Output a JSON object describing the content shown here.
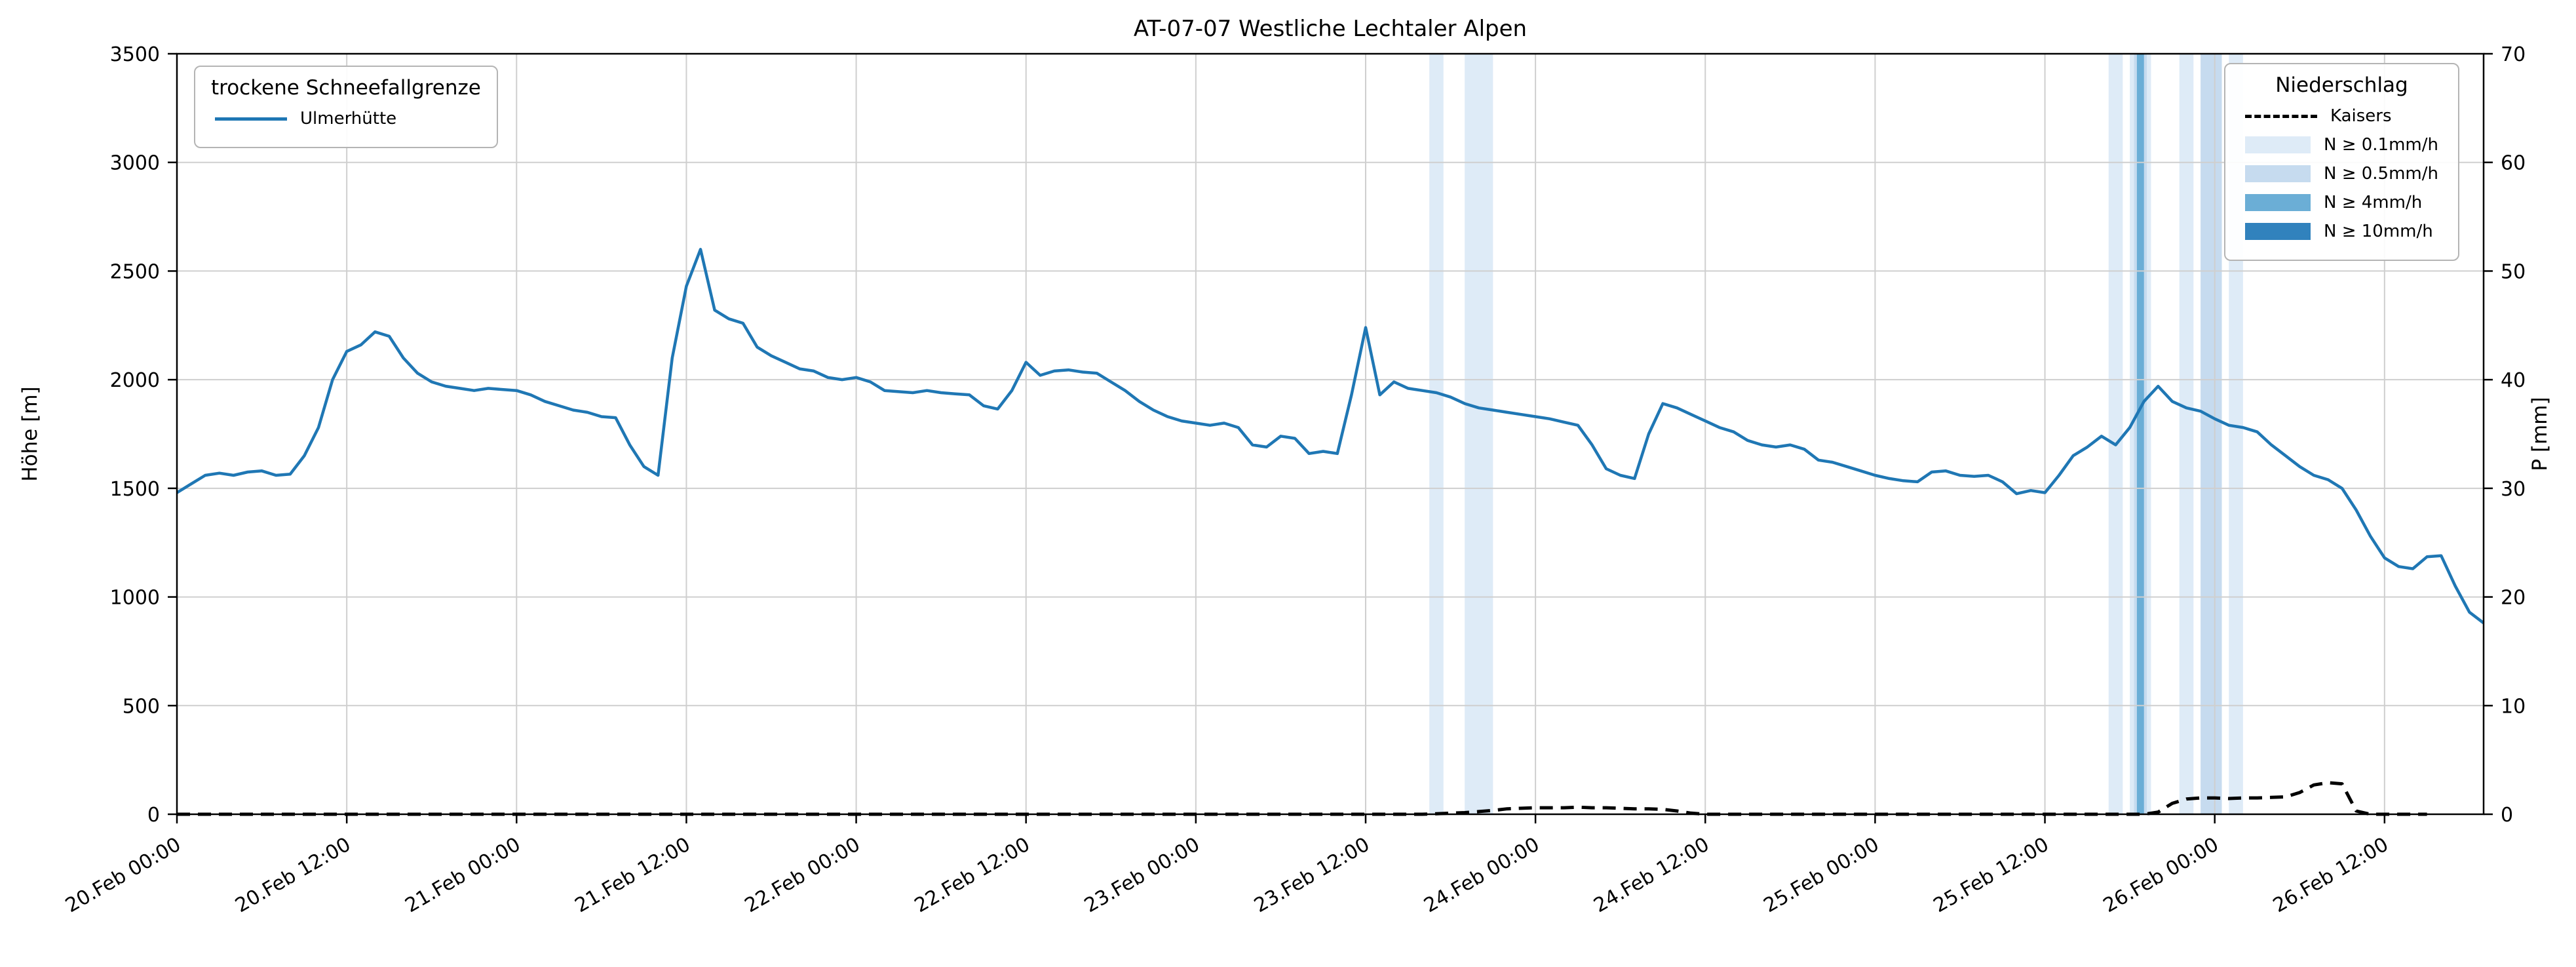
{
  "figure": {
    "title": "AT-07-07 Westliche Lechtaler Alpen",
    "legend_snowline": {
      "title": "trockene Schneefallgrenze",
      "item_label": "Ulmerhütte"
    },
    "legend_precip": {
      "title": "Niederschlag",
      "kaisers_label": "Kaisers",
      "band_labels": [
        "N ≥ 0.1mm/h",
        "N ≥ 0.5mm/h",
        "N ≥ 4mm/h",
        "N ≥ 10mm/h"
      ]
    }
  },
  "chart_data": {
    "type": "line",
    "title": "AT-07-07 Westliche Lechtaler Alpen",
    "x_unit": "hours since 20.Feb 00:00",
    "x_range": [
      0,
      163
    ],
    "x_ticks": [
      {
        "h": 0,
        "label": "20.Feb 00:00"
      },
      {
        "h": 12,
        "label": "20.Feb 12:00"
      },
      {
        "h": 24,
        "label": "21.Feb 00:00"
      },
      {
        "h": 36,
        "label": "21.Feb 12:00"
      },
      {
        "h": 48,
        "label": "22.Feb 00:00"
      },
      {
        "h": 60,
        "label": "22.Feb 12:00"
      },
      {
        "h": 72,
        "label": "23.Feb 00:00"
      },
      {
        "h": 84,
        "label": "23.Feb 12:00"
      },
      {
        "h": 96,
        "label": "24.Feb 00:00"
      },
      {
        "h": 108,
        "label": "24.Feb 12:00"
      },
      {
        "h": 120,
        "label": "25.Feb 00:00"
      },
      {
        "h": 132,
        "label": "25.Feb 12:00"
      },
      {
        "h": 144,
        "label": "26.Feb 00:00"
      },
      {
        "h": 156,
        "label": "26.Feb 12:00"
      }
    ],
    "y_left": {
      "label": "Höhe [m]",
      "range": [
        0,
        3500
      ],
      "ticks": [
        0,
        500,
        1000,
        1500,
        2000,
        2500,
        3000,
        3500
      ]
    },
    "y_right": {
      "label": "P [mm]",
      "range": [
        0,
        70
      ],
      "ticks": [
        0,
        10,
        20,
        30,
        40,
        50,
        60,
        70
      ]
    },
    "grid": true,
    "series": [
      {
        "name": "Ulmerhütte",
        "axis": "left",
        "color": "#1f77b4",
        "style": "solid",
        "width": 4.5,
        "x_start": 0,
        "x_step": 1,
        "values": [
          1480,
          1520,
          1560,
          1570,
          1560,
          1575,
          1580,
          1560,
          1565,
          1650,
          1780,
          2000,
          2130,
          2160,
          2220,
          2200,
          2100,
          2030,
          1990,
          1970,
          1960,
          1950,
          1960,
          1955,
          1950,
          1930,
          1900,
          1880,
          1860,
          1850,
          1830,
          1825,
          1700,
          1600,
          1560,
          2100,
          2430,
          2600,
          2320,
          2280,
          2260,
          2150,
          2110,
          2080,
          2050,
          2040,
          2010,
          2000,
          2010,
          1990,
          1950,
          1945,
          1940,
          1950,
          1940,
          1935,
          1930,
          1880,
          1865,
          1950,
          2080,
          2020,
          2040,
          2045,
          2035,
          2030,
          1990,
          1950,
          1900,
          1860,
          1830,
          1810,
          1800,
          1790,
          1800,
          1780,
          1700,
          1690,
          1740,
          1730,
          1660,
          1670,
          1660,
          1930,
          2240,
          1930,
          1990,
          1960,
          1950,
          1940,
          1920,
          1890,
          1870,
          1860,
          1850,
          1840,
          1830,
          1820,
          1805,
          1790,
          1700,
          1590,
          1560,
          1545,
          1750,
          1890,
          1870,
          1840,
          1810,
          1780,
          1760,
          1720,
          1700,
          1690,
          1700,
          1680,
          1630,
          1620,
          1600,
          1580,
          1560,
          1545,
          1535,
          1530,
          1575,
          1580,
          1560,
          1555,
          1560,
          1530,
          1475,
          1490,
          1480,
          1560,
          1650,
          1690,
          1740,
          1700,
          1780,
          1900,
          1970,
          1900,
          1870,
          1855,
          1820,
          1790,
          1780,
          1760,
          1700,
          1650,
          1600,
          1560,
          1540,
          1500,
          1400,
          1280,
          1180,
          1140,
          1130,
          1185,
          1190,
          1050,
          930,
          880
        ]
      },
      {
        "name": "Kaisers",
        "axis": "right",
        "color": "#000000",
        "style": "dashed",
        "width": 5,
        "x_start": 0,
        "x_step": 1,
        "values": [
          0,
          0,
          0,
          0,
          0,
          0,
          0,
          0,
          0,
          0,
          0,
          0,
          0,
          0,
          0,
          0,
          0,
          0,
          0,
          0,
          0,
          0,
          0,
          0,
          0,
          0,
          0,
          0,
          0,
          0,
          0,
          0,
          0,
          0,
          0,
          0,
          0,
          0,
          0,
          0,
          0,
          0,
          0,
          0,
          0,
          0,
          0,
          0,
          0,
          0,
          0,
          0,
          0,
          0,
          0,
          0,
          0,
          0,
          0,
          0,
          0,
          0,
          0,
          0,
          0,
          0,
          0,
          0,
          0,
          0,
          0,
          0,
          0,
          0,
          0,
          0,
          0,
          0,
          0,
          0,
          0,
          0,
          0,
          0,
          0,
          0,
          0,
          0,
          0,
          0.05,
          0.1,
          0.15,
          0.25,
          0.35,
          0.5,
          0.55,
          0.6,
          0.6,
          0.6,
          0.65,
          0.6,
          0.6,
          0.55,
          0.5,
          0.5,
          0.45,
          0.3,
          0.1,
          0,
          0,
          0,
          0,
          0,
          0,
          0,
          0,
          0,
          0,
          0,
          0,
          0,
          0,
          0,
          0,
          0,
          0,
          0,
          0,
          0,
          0,
          0,
          0,
          0,
          0,
          0,
          0,
          0,
          0,
          0,
          0,
          0.2,
          1.0,
          1.4,
          1.5,
          1.5,
          1.45,
          1.5,
          1.5,
          1.55,
          1.6,
          2.0,
          2.7,
          2.9,
          2.8,
          0.3,
          0,
          0,
          0,
          0,
          0
        ]
      }
    ],
    "precip_bands": {
      "levels": {
        "0.1": "#deebf7",
        "0.5": "#c6dbef",
        "4": "#6baed6",
        "10": "#3182bd"
      },
      "spans": [
        {
          "start_h": 88.5,
          "end_h": 89.5,
          "level": "0.1"
        },
        {
          "start_h": 91.0,
          "end_h": 93.0,
          "level": "0.1"
        },
        {
          "start_h": 136.5,
          "end_h": 137.5,
          "level": "0.1"
        },
        {
          "start_h": 138.0,
          "end_h": 139.5,
          "level": "0.1"
        },
        {
          "start_h": 138.3,
          "end_h": 139.2,
          "level": "0.5"
        },
        {
          "start_h": 138.5,
          "end_h": 139.0,
          "level": "4"
        },
        {
          "start_h": 141.5,
          "end_h": 142.5,
          "level": "0.1"
        },
        {
          "start_h": 143.0,
          "end_h": 144.5,
          "level": "0.5"
        },
        {
          "start_h": 145.0,
          "end_h": 146.0,
          "level": "0.1"
        }
      ]
    },
    "legend_positions": [
      "upper left",
      "upper right"
    ]
  }
}
